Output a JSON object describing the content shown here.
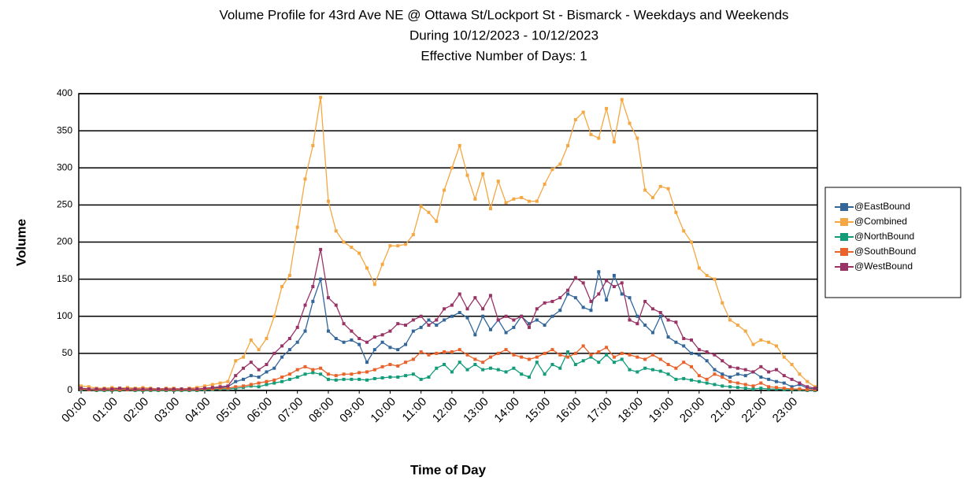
{
  "chart_data": {
    "type": "line",
    "title": [
      "Volume Profile for 43rd Ave NE @ Ottawa St/Lockport St - Bismarck - Weekdays and Weekends",
      "During 10/12/2023 - 10/12/2023",
      "Effective Number of Days: 1"
    ],
    "x_label": "Time of Day",
    "y_label": "Volume",
    "categories": [
      "00:00",
      null,
      null,
      null,
      "01:00",
      null,
      null,
      null,
      "02:00",
      null,
      null,
      null,
      "03:00",
      null,
      null,
      null,
      "04:00",
      null,
      null,
      null,
      "05:00",
      null,
      null,
      null,
      "06:00",
      null,
      null,
      null,
      "07:00",
      null,
      null,
      null,
      "08:00",
      null,
      null,
      null,
      "09:00",
      null,
      null,
      null,
      "10:00",
      null,
      null,
      null,
      "11:00",
      null,
      null,
      null,
      "12:00",
      null,
      null,
      null,
      "13:00",
      null,
      null,
      null,
      "14:00",
      null,
      null,
      null,
      "15:00",
      null,
      null,
      null,
      "16:00",
      null,
      null,
      null,
      "17:00",
      null,
      null,
      null,
      "18:00",
      null,
      null,
      null,
      "19:00",
      null,
      null,
      null,
      "20:00",
      null,
      null,
      null,
      "21:00",
      null,
      null,
      null,
      "22:00",
      null,
      null,
      null,
      "23:00",
      null,
      null,
      null
    ],
    "ylim": [
      0,
      400
    ],
    "yticks": [
      0,
      50,
      100,
      150,
      200,
      250,
      300,
      350,
      400
    ],
    "grid": true,
    "legend": "right",
    "series": [
      {
        "name": "@EastBound",
        "color": "#336699",
        "values": [
          3,
          2,
          1,
          1,
          1,
          2,
          1,
          1,
          1,
          1,
          1,
          1,
          1,
          1,
          1,
          1,
          2,
          3,
          4,
          5,
          12,
          15,
          20,
          18,
          25,
          30,
          45,
          55,
          65,
          80,
          120,
          150,
          80,
          70,
          65,
          68,
          62,
          38,
          55,
          65,
          58,
          55,
          62,
          80,
          85,
          95,
          88,
          95,
          100,
          105,
          98,
          75,
          100,
          82,
          95,
          78,
          85,
          100,
          90,
          95,
          88,
          100,
          108,
          130,
          125,
          112,
          108,
          160,
          122,
          155,
          130,
          125,
          100,
          88,
          78,
          100,
          72,
          65,
          60,
          50,
          48,
          40,
          28,
          22,
          18,
          22,
          20,
          25,
          18,
          15,
          12,
          10,
          5,
          8,
          3,
          2
        ]
      },
      {
        "name": "@Combined",
        "color": "#f4a742",
        "values": [
          6,
          5,
          3,
          3,
          4,
          3,
          4,
          3,
          4,
          3,
          2,
          3,
          3,
          2,
          3,
          4,
          6,
          8,
          10,
          12,
          40,
          45,
          68,
          55,
          70,
          100,
          140,
          155,
          220,
          285,
          330,
          395,
          255,
          215,
          200,
          193,
          185,
          165,
          143,
          170,
          195,
          195,
          197,
          210,
          248,
          240,
          228,
          270,
          300,
          330,
          290,
          258,
          292,
          245,
          282,
          253,
          258,
          260,
          255,
          255,
          278,
          298,
          305,
          330,
          365,
          375,
          345,
          340,
          380,
          335,
          392,
          360,
          340,
          270,
          260,
          275,
          272,
          240,
          215,
          200,
          165,
          155,
          150,
          118,
          95,
          88,
          80,
          62,
          68,
          65,
          60,
          45,
          35,
          22,
          12,
          5
        ]
      },
      {
        "name": "@NorthBound",
        "color": "#129c7a",
        "values": [
          1,
          1,
          0,
          0,
          0,
          0,
          1,
          0,
          0,
          0,
          0,
          0,
          0,
          0,
          0,
          0,
          1,
          1,
          2,
          2,
          3,
          4,
          6,
          5,
          8,
          10,
          12,
          15,
          18,
          22,
          24,
          22,
          15,
          14,
          15,
          15,
          15,
          14,
          16,
          17,
          18,
          18,
          20,
          22,
          15,
          18,
          30,
          35,
          25,
          38,
          28,
          35,
          28,
          30,
          28,
          25,
          30,
          22,
          18,
          38,
          22,
          35,
          30,
          52,
          35,
          40,
          45,
          38,
          48,
          38,
          42,
          28,
          25,
          30,
          28,
          26,
          22,
          15,
          16,
          14,
          12,
          10,
          8,
          6,
          5,
          4,
          3,
          2,
          3,
          2,
          2,
          1,
          1,
          1,
          0,
          0
        ]
      },
      {
        "name": "@SouthBound",
        "color": "#e8622a",
        "values": [
          2,
          1,
          1,
          1,
          1,
          1,
          1,
          1,
          1,
          1,
          1,
          1,
          1,
          1,
          1,
          1,
          2,
          2,
          3,
          3,
          5,
          6,
          8,
          10,
          12,
          14,
          18,
          22,
          28,
          32,
          28,
          30,
          22,
          20,
          22,
          22,
          24,
          25,
          28,
          32,
          35,
          33,
          38,
          42,
          52,
          48,
          50,
          52,
          52,
          55,
          48,
          42,
          38,
          45,
          50,
          55,
          48,
          45,
          42,
          45,
          50,
          55,
          48,
          45,
          50,
          60,
          48,
          52,
          58,
          45,
          50,
          48,
          45,
          42,
          48,
          42,
          35,
          30,
          38,
          32,
          20,
          15,
          22,
          18,
          12,
          10,
          8,
          6,
          10,
          5,
          4,
          3,
          2,
          2,
          1,
          1
        ]
      },
      {
        "name": "@WestBound",
        "color": "#993366",
        "values": [
          3,
          2,
          2,
          2,
          2,
          3,
          2,
          2,
          2,
          2,
          2,
          2,
          2,
          2,
          2,
          2,
          3,
          4,
          5,
          6,
          20,
          30,
          38,
          28,
          35,
          50,
          60,
          70,
          85,
          115,
          140,
          190,
          125,
          115,
          90,
          80,
          70,
          65,
          72,
          75,
          80,
          90,
          88,
          95,
          100,
          88,
          95,
          110,
          115,
          130,
          110,
          125,
          110,
          128,
          95,
          100,
          95,
          100,
          85,
          110,
          118,
          120,
          125,
          135,
          152,
          145,
          120,
          130,
          148,
          140,
          145,
          95,
          90,
          120,
          110,
          105,
          95,
          92,
          70,
          68,
          55,
          52,
          48,
          40,
          32,
          30,
          28,
          25,
          32,
          25,
          28,
          20,
          15,
          10,
          5,
          3
        ]
      }
    ]
  }
}
